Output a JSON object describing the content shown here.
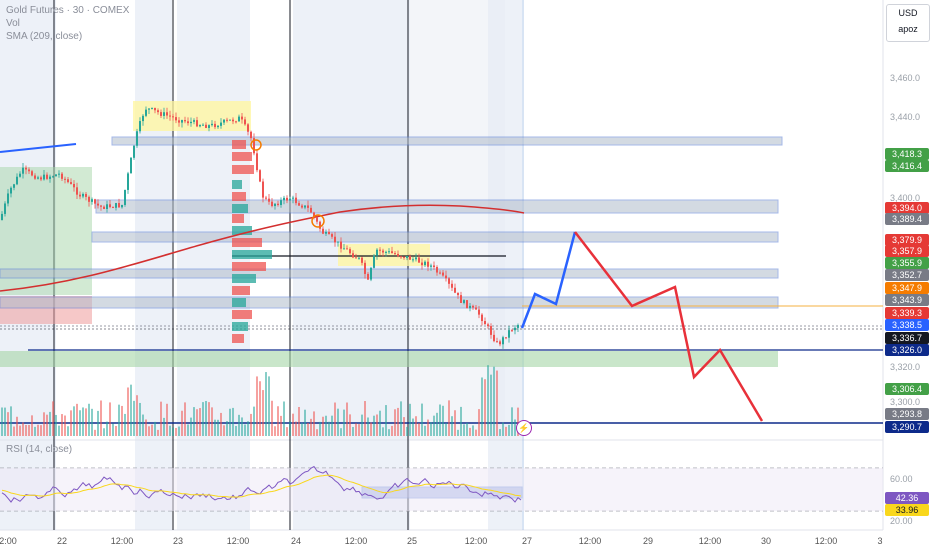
{
  "legend": {
    "symbol": "Gold Futures · 30 · COMEX",
    "vol": "Vol",
    "sma": "SMA (209, close)",
    "rsi": "RSI (14, close)"
  },
  "currency": {
    "label": "USD",
    "sub": "apoz"
  },
  "price_axis": [
    "3,460.0",
    "3,440.0",
    "3,400.0",
    "3,320.0",
    "3,300.0"
  ],
  "price_badges": [
    {
      "text": "3,418.3",
      "color": "#43a047"
    },
    {
      "text": "3,416.4",
      "color": "#43a047"
    },
    {
      "text": "3,394.0",
      "color": "#e53935"
    },
    {
      "text": "3,389.4",
      "color": "#787b86"
    },
    {
      "text": "3,379.9",
      "color": "#e53935"
    },
    {
      "text": "3,357.9",
      "color": "#e53935"
    },
    {
      "text": "3,355.9",
      "color": "#43a047"
    },
    {
      "text": "3,352.7",
      "color": "#787b86"
    },
    {
      "text": "3,347.9",
      "color": "#f57c00"
    },
    {
      "text": "3,343.9",
      "color": "#787b86"
    },
    {
      "text": "3,339.3",
      "color": "#e53935"
    },
    {
      "text": "3,338.5",
      "color": "#2962ff"
    },
    {
      "text": "3,336.7",
      "color": "#131722"
    },
    {
      "text": "3,326.0",
      "color": "#0d2a8a"
    },
    {
      "text": "3,306.4",
      "color": "#43a047"
    },
    {
      "text": "3,293.8",
      "color": "#787b86"
    },
    {
      "text": "3,290.7",
      "color": "#0d2a8a"
    }
  ],
  "rsi_axis": [
    "60.00",
    "20.00"
  ],
  "rsi_badges": [
    {
      "text": "42.36",
      "color": "#7e57c2"
    },
    {
      "text": "33.96",
      "color": "#f9d71c"
    }
  ],
  "time_axis": [
    "2:00",
    "22",
    "12:00",
    "23",
    "12:00",
    "24",
    "12:00",
    "25",
    "12:00",
    "27",
    "12:00",
    "29",
    "12:00",
    "30",
    "12:00",
    "3"
  ],
  "colors": {
    "up": "#26a69a",
    "down": "#ef5350",
    "sma": "#d32f2f",
    "zone_blue": "#5b7fd6",
    "forecast_red": "#e8313a",
    "forecast_blue": "#2962ff"
  }
}
